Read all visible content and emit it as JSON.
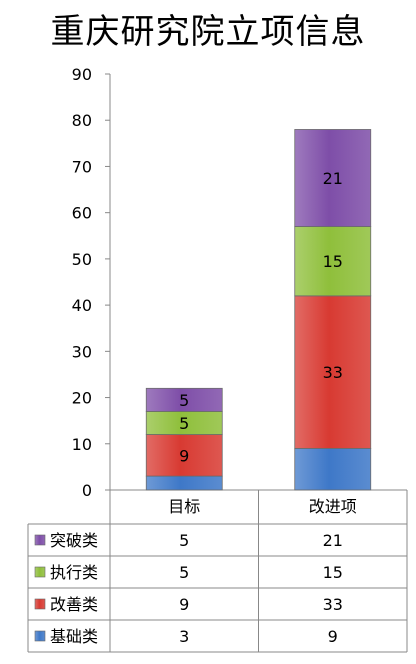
{
  "chart_data": {
    "type": "bar",
    "stacked": true,
    "title": "重庆研究院立项信息",
    "categories": [
      "目标",
      "改进项"
    ],
    "series": [
      {
        "name": "基础类",
        "values": [
          3,
          9
        ],
        "color": "#3e78c8"
      },
      {
        "name": "改善类",
        "values": [
          9,
          33
        ],
        "color": "#d83a32"
      },
      {
        "name": "执行类",
        "values": [
          5,
          15
        ],
        "color": "#8fbf3b"
      },
      {
        "name": "突破类",
        "values": [
          5,
          21
        ],
        "color": "#7e4ea8"
      }
    ],
    "ylim": [
      0,
      90
    ],
    "yticks": [
      0,
      10,
      20,
      30,
      40,
      50,
      60,
      70,
      80,
      90
    ],
    "grid": false,
    "data_table": true,
    "table_row_order": [
      "突破类",
      "执行类",
      "改善类",
      "基础类"
    ],
    "data_labels_shown": {
      "基础类": [
        false,
        false
      ]
    }
  }
}
